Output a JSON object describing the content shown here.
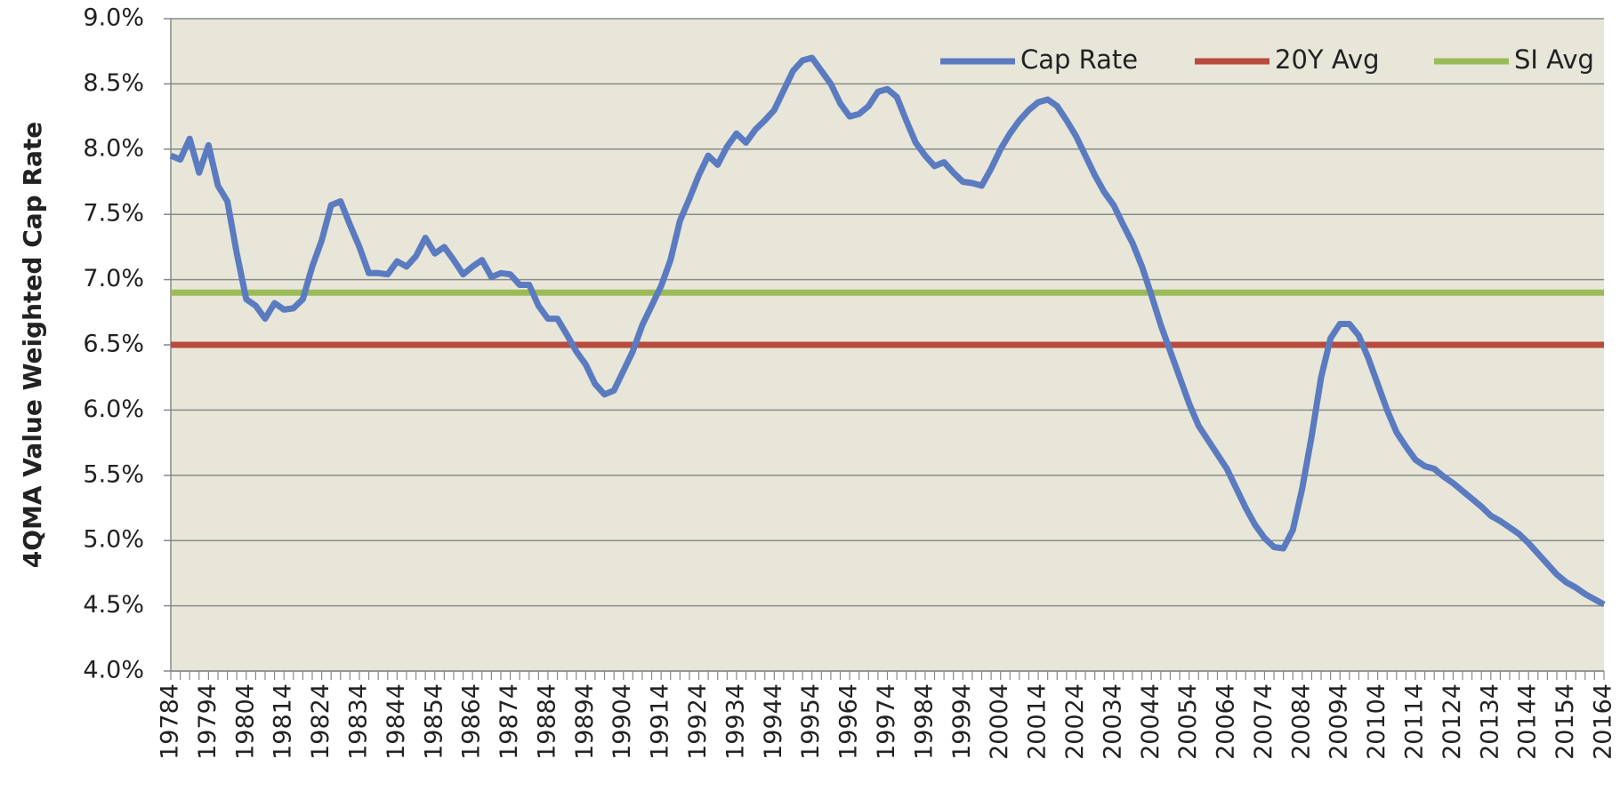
{
  "chart_data": {
    "type": "line",
    "y_axis_label": "4QMA Value Weighted Cap Rate",
    "categories": [
      "19784",
      null,
      null,
      null,
      "19794",
      null,
      null,
      null,
      "19804",
      null,
      null,
      null,
      "19814",
      null,
      null,
      null,
      "19824",
      null,
      null,
      null,
      "19834",
      null,
      null,
      null,
      "19844",
      null,
      null,
      null,
      "19854",
      null,
      null,
      null,
      "19864",
      null,
      null,
      null,
      "19874",
      null,
      null,
      null,
      "19884",
      null,
      null,
      null,
      "19894",
      null,
      null,
      null,
      "19904",
      null,
      null,
      null,
      "19914",
      null,
      null,
      null,
      "19924",
      null,
      null,
      null,
      "19934",
      null,
      null,
      null,
      "19944",
      null,
      null,
      null,
      "19954",
      null,
      null,
      null,
      "19964",
      null,
      null,
      null,
      "19974",
      null,
      null,
      null,
      "19984",
      null,
      null,
      null,
      "19994",
      null,
      null,
      null,
      "20004",
      null,
      null,
      null,
      "20014",
      null,
      null,
      null,
      "20024",
      null,
      null,
      null,
      "20034",
      null,
      null,
      null,
      "20044",
      null,
      null,
      null,
      "20054",
      null,
      null,
      null,
      "20064",
      null,
      null,
      null,
      "20074",
      null,
      null,
      null,
      "20084",
      null,
      null,
      null,
      "20094",
      null,
      null,
      null,
      "20104",
      null,
      null,
      null,
      "20114",
      null,
      null,
      null,
      "20124",
      null,
      null,
      null,
      "20134",
      null,
      null,
      null,
      "20144",
      null,
      null,
      null,
      "20154",
      null,
      null,
      null,
      "20164"
    ],
    "series": [
      {
        "name": "Cap Rate",
        "color": "#5b7bc0",
        "values": [
          7.95,
          7.92,
          8.08,
          7.82,
          8.03,
          7.72,
          7.6,
          7.2,
          6.85,
          6.8,
          6.7,
          6.82,
          6.77,
          6.78,
          6.85,
          7.1,
          7.3,
          7.57,
          7.6,
          7.42,
          7.25,
          7.05,
          7.05,
          7.04,
          7.14,
          7.1,
          7.18,
          7.32,
          7.2,
          7.25,
          7.15,
          7.04,
          7.1,
          7.15,
          7.02,
          7.05,
          7.04,
          6.96,
          6.96,
          6.8,
          6.7,
          6.7,
          6.58,
          6.45,
          6.35,
          6.2,
          6.12,
          6.15,
          6.3,
          6.45,
          6.65,
          6.8,
          6.95,
          7.15,
          7.45,
          7.62,
          7.8,
          7.95,
          7.88,
          8.02,
          8.12,
          8.05,
          8.15,
          8.22,
          8.3,
          8.45,
          8.6,
          8.68,
          8.7,
          8.6,
          8.5,
          8.35,
          8.25,
          8.27,
          8.33,
          8.44,
          8.46,
          8.4,
          8.22,
          8.05,
          7.95,
          7.87,
          7.9,
          7.82,
          7.75,
          7.74,
          7.72,
          7.85,
          8.0,
          8.12,
          8.22,
          8.3,
          8.36,
          8.38,
          8.33,
          8.22,
          8.1,
          7.95,
          7.8,
          7.67,
          7.57,
          7.42,
          7.28,
          7.1,
          6.88,
          6.65,
          6.45,
          6.25,
          6.05,
          5.88,
          5.77,
          5.66,
          5.55,
          5.4,
          5.25,
          5.12,
          5.02,
          4.95,
          4.94,
          5.08,
          5.4,
          5.8,
          6.25,
          6.55,
          6.66,
          6.66,
          6.57,
          6.4,
          6.2,
          6.0,
          5.83,
          5.72,
          5.62,
          5.57,
          5.55,
          5.49,
          5.44,
          5.38,
          5.32,
          5.26,
          5.19,
          5.15,
          5.1,
          5.05,
          4.98,
          4.9,
          4.82,
          4.74,
          4.68,
          4.64,
          4.59,
          4.55,
          4.51
        ]
      }
    ],
    "reference_lines": [
      {
        "name": "20Y Avg",
        "color": "#b84a3e",
        "value": 6.5
      },
      {
        "name": "SI Avg",
        "color": "#9bbb59",
        "value": 6.9
      }
    ],
    "ylim": [
      4,
      9
    ],
    "yticks": [
      {
        "value": 4,
        "label": "4.0%"
      },
      {
        "value": 4.5,
        "label": "4.5%"
      },
      {
        "value": 5,
        "label": "5.0%"
      },
      {
        "value": 5.5,
        "label": "5.5%"
      },
      {
        "value": 6,
        "label": "6.0%"
      },
      {
        "value": 6.5,
        "label": "6.5%"
      },
      {
        "value": 7,
        "label": "7.0%"
      },
      {
        "value": 7.5,
        "label": "7.5%"
      },
      {
        "value": 8,
        "label": "8.0%"
      },
      {
        "value": 8.5,
        "label": "8.5%"
      },
      {
        "value": 9,
        "label": "9.0%"
      }
    ],
    "grid": true,
    "legend": "top-right",
    "background": "#e8e6d8"
  }
}
